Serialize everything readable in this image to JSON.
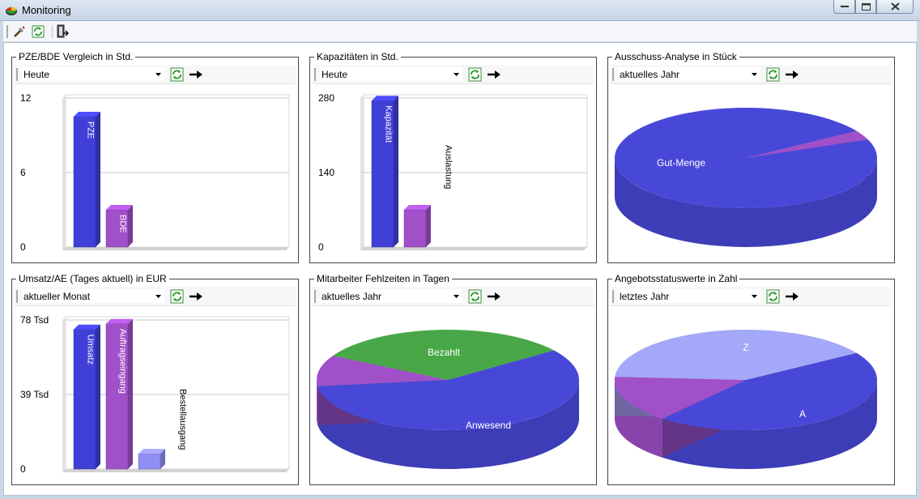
{
  "window": {
    "title": "Monitoring"
  },
  "toolbar": {
    "items": [
      {
        "name": "tools-icon"
      },
      {
        "name": "refresh-icon"
      },
      {
        "name": "exit-icon"
      }
    ]
  },
  "panels": [
    {
      "title": "PZE/BDE Vergleich in Std.",
      "period": "Heute",
      "chart_data": {
        "type": "bar",
        "ylim": [
          0,
          12
        ],
        "yticks": [
          "12",
          "6",
          "0"
        ],
        "bars": [
          {
            "label": "PZE",
            "value": 10.5,
            "color": "#4040d8",
            "label_inside": true
          },
          {
            "label": "BDE",
            "value": 3.0,
            "color": "#a050c8",
            "label_inside": true
          }
        ]
      }
    },
    {
      "title": "Kapazitäten in Std.",
      "period": "Heute",
      "chart_data": {
        "type": "bar",
        "ylim": [
          0,
          280
        ],
        "yticks": [
          "280",
          "140",
          "0"
        ],
        "bars": [
          {
            "label": "Kapazität",
            "value": 275,
            "color": "#4040d8",
            "label_inside": true
          },
          {
            "label": "Auslastung",
            "value": 70,
            "color": "#a050c8",
            "label_inside": false
          }
        ]
      }
    },
    {
      "title": "Ausschuss-Analyse in Stück",
      "period": "aktuelles Jahr",
      "chart_data": {
        "type": "pie",
        "slices": [
          {
            "label": "Gut-Menge",
            "value": 97,
            "color": "#4848d8"
          },
          {
            "label": "",
            "value": 3,
            "color": "#a050c8"
          }
        ]
      }
    },
    {
      "title": "Umsatz/AE (Tages aktuell) in EUR",
      "period": "aktueller Monat",
      "chart_data": {
        "type": "bar",
        "ylim": [
          0,
          78
        ],
        "yticks": [
          "78 Tsd",
          "39 Tsd",
          "0"
        ],
        "bars": [
          {
            "label": "Umsatz",
            "value": 73,
            "color": "#4040d8",
            "label_inside": true
          },
          {
            "label": "Auftragseingang",
            "value": 76,
            "color": "#a050c8",
            "label_inside": true
          },
          {
            "label": "Bestellausgang",
            "value": 8,
            "color": "#8f8ff5",
            "label_inside": false
          }
        ]
      }
    },
    {
      "title": "Mitarbeiter Fehlzeiten in Tagen",
      "period": "aktuelles Jahr",
      "chart_data": {
        "type": "pie",
        "slices": [
          {
            "label": "Anwesend",
            "value": 58,
            "color": "#4848d8"
          },
          {
            "label": "",
            "value": 10,
            "color": "#a050c8"
          },
          {
            "label": "Bezahlt",
            "value": 32,
            "color": "#48a848"
          }
        ]
      }
    },
    {
      "title": "Angebotsstatuswerte in Zahl",
      "period": "letztes Jahr",
      "chart_data": {
        "type": "pie",
        "slices": [
          {
            "label": "A",
            "value": 45,
            "color": "#4848d8"
          },
          {
            "label": "",
            "value": 15,
            "color": "#a050c8"
          },
          {
            "label": "Z",
            "value": 40,
            "color": "#a3a8f8"
          }
        ]
      }
    }
  ]
}
